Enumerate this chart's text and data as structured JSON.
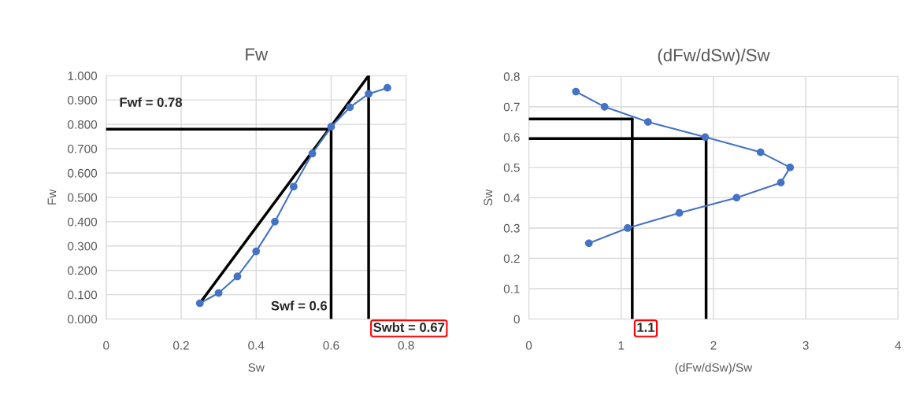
{
  "chart_data": [
    {
      "type": "line",
      "title": "Fw",
      "xlabel": "Sw",
      "ylabel": "Fw",
      "xlim": [
        0,
        0.8
      ],
      "xticks": [
        0,
        0.2,
        0.4,
        0.6,
        0.8
      ],
      "ylim": [
        0,
        1.0
      ],
      "yticks": [
        {
          "value": 0,
          "label": "0.000"
        },
        {
          "value": 0.1,
          "label": "0.100"
        },
        {
          "value": 0.2,
          "label": "0.200"
        },
        {
          "value": 0.3,
          "label": "0.300"
        },
        {
          "value": 0.4,
          "label": "0.400"
        },
        {
          "value": 0.5,
          "label": "0.500"
        },
        {
          "value": 0.6,
          "label": "0.600"
        },
        {
          "value": 0.7,
          "label": "0.700"
        },
        {
          "value": 0.8,
          "label": "0.800"
        },
        {
          "value": 0.9,
          "label": "0.900"
        },
        {
          "value": 1.0,
          "label": "1.000"
        }
      ],
      "grid": true,
      "series": [
        {
          "color": "#4472c4",
          "marker": "circle",
          "x": [
            0.25,
            0.3,
            0.35,
            0.4,
            0.45,
            0.5,
            0.55,
            0.6,
            0.65,
            0.7,
            0.75
          ],
          "values": [
            0.065,
            0.107,
            0.175,
            0.278,
            0.4,
            0.544,
            0.68,
            0.79,
            0.87,
            0.925,
            0.95
          ]
        },
        {
          "color": "#000000",
          "marker": "none",
          "x": [
            0.25,
            0.7
          ],
          "values": [
            0.065,
            1.0
          ]
        },
        {
          "color": "#000000",
          "marker": "none",
          "x": [
            0,
            0.6
          ],
          "values": [
            0.78,
            0.78
          ]
        },
        {
          "color": "#000000",
          "marker": "none",
          "x": [
            0.6,
            0.6
          ],
          "values": [
            0,
            0.78
          ]
        },
        {
          "color": "#000000",
          "marker": "none",
          "x": [
            0.7,
            0.7
          ],
          "values": [
            0,
            1.0
          ]
        }
      ],
      "annotations": [
        {
          "text": "Fwf = 0.78",
          "x": 0,
          "y": 0.78
        },
        {
          "text": "Swf = 0.6",
          "x": 0.59,
          "y": 0.05
        },
        {
          "text": "Swbt = 0.67",
          "x": 0.7,
          "y": 0
        }
      ]
    },
    {
      "type": "line",
      "title": "(dFw/dSw)/Sw",
      "xlabel": "(dFw/dSw)/Sw",
      "ylabel": "Sw",
      "xlim": [
        0,
        4
      ],
      "xticks": [
        0,
        1,
        2,
        3,
        4
      ],
      "ylim": [
        0,
        0.8
      ],
      "yticks": [
        0,
        0.1,
        0.2,
        0.3,
        0.4,
        0.5,
        0.6,
        0.7,
        0.8
      ],
      "grid": true,
      "series": [
        {
          "color": "#4472c4",
          "marker": "circle",
          "x": [
            0.51,
            0.82,
            1.29,
            1.91,
            2.51,
            2.83,
            2.73,
            2.25,
            1.63,
            1.07,
            0.65
          ],
          "values": [
            0.75,
            0.7,
            0.65,
            0.6,
            0.55,
            0.5,
            0.45,
            0.4,
            0.35,
            0.3,
            0.25
          ]
        },
        {
          "color": "#000000",
          "marker": "none",
          "x": [
            0,
            1.12
          ],
          "values": [
            0.66,
            0.66
          ]
        },
        {
          "color": "#000000",
          "marker": "none",
          "x": [
            1.12,
            1.12
          ],
          "values": [
            0,
            0.66
          ]
        },
        {
          "color": "#000000",
          "marker": "none",
          "x": [
            0,
            1.92
          ],
          "values": [
            0.595,
            0.595
          ]
        },
        {
          "color": "#000000",
          "marker": "none",
          "x": [
            1.92,
            1.92
          ],
          "values": [
            0,
            0.595
          ]
        }
      ],
      "annotations": [
        {
          "text": "1.1",
          "x": 1.12,
          "y": 0
        }
      ]
    }
  ]
}
